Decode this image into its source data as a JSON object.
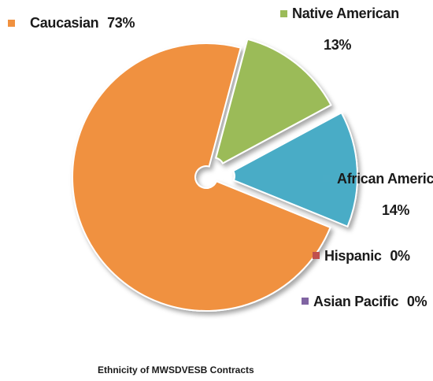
{
  "chart_data": {
    "type": "pie",
    "style": "exploded",
    "caption": "Ethnicity of MWSDVESB Contracts",
    "slices": [
      {
        "label": "Caucasian",
        "value_text": "73%",
        "value": 73,
        "color": "#f0913f"
      },
      {
        "label": "Native American",
        "value_text": "13%",
        "value": 13,
        "color": "#9bbb59"
      },
      {
        "label": "African American",
        "value_text": "14%",
        "value": 14,
        "color": "#4aacc6"
      },
      {
        "label": "Hispanic",
        "value_text": "0%",
        "value": 0,
        "color": "#c0504d"
      },
      {
        "label": "Asian Pacific",
        "value_text": "0%",
        "value": 0,
        "color": "#8064a2"
      }
    ]
  }
}
